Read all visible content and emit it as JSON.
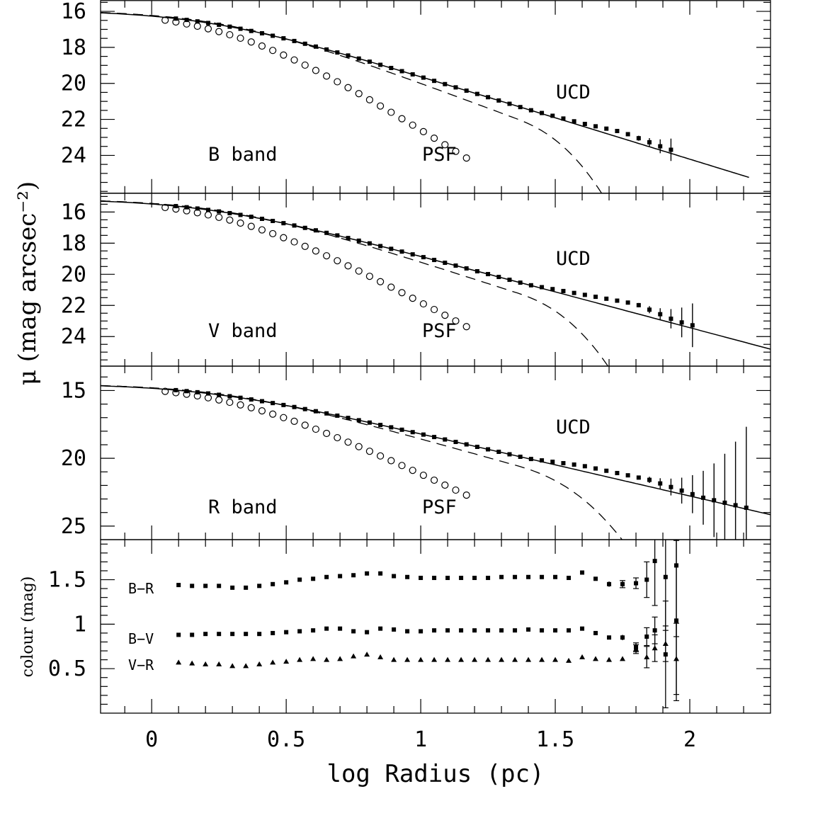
{
  "figure": {
    "ylabel_main": "μ (mag arcsec⁻²)",
    "ylabel_colour": "colour (mag)",
    "xlabel": "log Radius (pc)",
    "x_ticks": [
      "0",
      "0.5",
      "1",
      "1.5",
      "2"
    ],
    "xlim": [
      -0.19,
      2.3
    ]
  },
  "chart_data": [
    {
      "type": "scatter",
      "panel": "B",
      "band_label": "B band",
      "psf_label": "PSF",
      "ucd_label": "UCD",
      "ylim": [
        26.1,
        15.4
      ],
      "y_ticks": [
        "16",
        "18",
        "20",
        "22",
        "24"
      ],
      "y_tick_values": [
        16,
        18,
        20,
        22,
        24
      ],
      "ucd": {
        "r0": 0.2,
        "mu0": 15.93,
        "tail": 2.3
      },
      "sersic": {
        "r0": 0.28,
        "mu0": 15.93,
        "tail": 2.8
      },
      "psf": {
        "r0": 0.3,
        "mu0": 15.93,
        "tail": 4.7
      },
      "psf_x_max": 1.17,
      "ucd_x_max": 1.95,
      "residual": [
        [
          1.4,
          0
        ],
        [
          1.6,
          0.15
        ],
        [
          1.75,
          0.35
        ],
        [
          1.9,
          0.2
        ]
      ],
      "model_end": 2.22,
      "dashed_end": 1.84
    },
    {
      "type": "scatter",
      "panel": "V",
      "band_label": "V band",
      "psf_label": "PSF",
      "ucd_label": "UCD",
      "ylim": [
        25.9,
        14.8
      ],
      "y_ticks": [
        "16",
        "18",
        "20",
        "22",
        "24"
      ],
      "y_tick_values": [
        16,
        18,
        20,
        22,
        24
      ],
      "ucd": {
        "r0": 0.2,
        "mu0": 15.15,
        "tail": 2.3
      },
      "sersic": {
        "r0": 0.28,
        "mu0": 15.15,
        "tail": 2.8
      },
      "psf": {
        "r0": 0.3,
        "mu0": 15.15,
        "tail": 4.7
      },
      "psf_x_max": 1.17,
      "ucd_x_max": 2.04,
      "residual": [
        [
          1.4,
          0
        ],
        [
          1.6,
          0.3
        ],
        [
          1.8,
          0.6
        ],
        [
          1.95,
          0.2
        ]
      ],
      "model_end": 2.3,
      "dashed_end": 1.84
    },
    {
      "type": "scatter",
      "panel": "R",
      "band_label": "R band",
      "psf_label": "PSF",
      "ucd_label": "UCD",
      "ylim": [
        26.0,
        13.2
      ],
      "y_ticks": [
        "15",
        "20",
        "25"
      ],
      "y_tick_values": [
        15,
        20,
        25
      ],
      "ucd": {
        "r0": 0.2,
        "mu0": 14.5,
        "tail": 2.3
      },
      "sersic": {
        "r0": 0.28,
        "mu0": 14.5,
        "tail": 2.8
      },
      "psf": {
        "r0": 0.3,
        "mu0": 14.5,
        "tail": 4.7
      },
      "psf_x_max": 1.17,
      "ucd_x_max": 2.22,
      "residual": [
        [
          1.4,
          0
        ],
        [
          1.6,
          0.4
        ],
        [
          1.85,
          0.5
        ],
        [
          2.05,
          0.1
        ]
      ],
      "model_end": 2.3,
      "dashed_end": 1.88
    },
    {
      "type": "scatter",
      "panel": "colour",
      "ylim": [
        0.0,
        1.95
      ],
      "y_ticks": [
        "0.5",
        "1",
        "1.5"
      ],
      "y_tick_values": [
        0.5,
        1.0,
        1.5
      ],
      "series": [
        {
          "name": "B-R",
          "label": "B−R",
          "marker": "square",
          "x": [
            0.1,
            0.15,
            0.2,
            0.25,
            0.3,
            0.35,
            0.4,
            0.45,
            0.5,
            0.55,
            0.6,
            0.65,
            0.7,
            0.75,
            0.8,
            0.85,
            0.9,
            0.95,
            1.0,
            1.05,
            1.1,
            1.15,
            1.2,
            1.25,
            1.3,
            1.35,
            1.4,
            1.45,
            1.5,
            1.55,
            1.6,
            1.65,
            1.7,
            1.75,
            1.8,
            1.84,
            1.87,
            1.91,
            1.95
          ],
          "y": [
            1.44,
            1.43,
            1.43,
            1.43,
            1.41,
            1.41,
            1.43,
            1.45,
            1.47,
            1.5,
            1.51,
            1.53,
            1.54,
            1.55,
            1.57,
            1.57,
            1.54,
            1.53,
            1.52,
            1.52,
            1.52,
            1.52,
            1.52,
            1.52,
            1.53,
            1.53,
            1.53,
            1.53,
            1.53,
            1.52,
            1.58,
            1.51,
            1.45,
            1.45,
            1.46,
            1.5,
            1.71,
            1.53,
            1.66
          ],
          "err": [
            0.015,
            0.015,
            0.015,
            0.015,
            0.015,
            0.015,
            0.015,
            0.015,
            0.015,
            0.015,
            0.015,
            0.015,
            0.015,
            0.015,
            0.015,
            0.015,
            0.015,
            0.015,
            0.015,
            0.015,
            0.015,
            0.015,
            0.015,
            0.015,
            0.015,
            0.015,
            0.015,
            0.015,
            0.015,
            0.015,
            0.02,
            0.02,
            0.03,
            0.04,
            0.06,
            0.2,
            0.5,
            0.6,
            0.8
          ]
        },
        {
          "name": "B-V",
          "label": "B−V",
          "marker": "square",
          "x": [
            0.1,
            0.15,
            0.2,
            0.25,
            0.3,
            0.35,
            0.4,
            0.45,
            0.5,
            0.55,
            0.6,
            0.65,
            0.7,
            0.75,
            0.8,
            0.85,
            0.9,
            0.95,
            1.0,
            1.05,
            1.1,
            1.15,
            1.2,
            1.25,
            1.3,
            1.35,
            1.4,
            1.45,
            1.5,
            1.55,
            1.6,
            1.65,
            1.7,
            1.75,
            1.8,
            1.84,
            1.87,
            1.91,
            1.95
          ],
          "y": [
            0.88,
            0.88,
            0.89,
            0.89,
            0.89,
            0.89,
            0.89,
            0.9,
            0.91,
            0.92,
            0.93,
            0.95,
            0.95,
            0.92,
            0.91,
            0.95,
            0.94,
            0.92,
            0.92,
            0.93,
            0.93,
            0.93,
            0.93,
            0.93,
            0.93,
            0.93,
            0.94,
            0.93,
            0.93,
            0.93,
            0.95,
            0.9,
            0.85,
            0.85,
            0.74,
            0.86,
            0.93,
            0.66,
            1.04
          ],
          "err": [
            0.015,
            0.015,
            0.015,
            0.015,
            0.015,
            0.015,
            0.015,
            0.015,
            0.015,
            0.015,
            0.015,
            0.015,
            0.015,
            0.015,
            0.015,
            0.015,
            0.015,
            0.015,
            0.015,
            0.015,
            0.015,
            0.015,
            0.015,
            0.015,
            0.015,
            0.015,
            0.015,
            0.015,
            0.015,
            0.015,
            0.02,
            0.02,
            0.02,
            0.03,
            0.05,
            0.1,
            0.15,
            0.6,
            0.9
          ]
        },
        {
          "name": "V-R",
          "label": "V−R",
          "marker": "triangle",
          "x": [
            0.1,
            0.15,
            0.2,
            0.25,
            0.3,
            0.35,
            0.4,
            0.45,
            0.5,
            0.55,
            0.6,
            0.65,
            0.7,
            0.75,
            0.8,
            0.85,
            0.9,
            0.95,
            1.0,
            1.05,
            1.1,
            1.15,
            1.2,
            1.25,
            1.3,
            1.35,
            1.4,
            1.45,
            1.5,
            1.55,
            1.6,
            1.65,
            1.7,
            1.75,
            1.8,
            1.84,
            1.87,
            1.91,
            1.95
          ],
          "y": [
            0.57,
            0.56,
            0.55,
            0.55,
            0.53,
            0.53,
            0.55,
            0.57,
            0.58,
            0.6,
            0.61,
            0.6,
            0.61,
            0.64,
            0.66,
            0.63,
            0.6,
            0.6,
            0.6,
            0.6,
            0.6,
            0.6,
            0.6,
            0.6,
            0.6,
            0.6,
            0.6,
            0.6,
            0.6,
            0.59,
            0.63,
            0.61,
            0.6,
            0.61,
            0.72,
            0.63,
            0.73,
            0.78,
            0.61
          ],
          "err": [
            0.012,
            0.012,
            0.012,
            0.012,
            0.012,
            0.012,
            0.012,
            0.012,
            0.012,
            0.012,
            0.012,
            0.012,
            0.012,
            0.012,
            0.012,
            0.012,
            0.012,
            0.012,
            0.012,
            0.012,
            0.012,
            0.012,
            0.012,
            0.012,
            0.012,
            0.012,
            0.012,
            0.012,
            0.012,
            0.012,
            0.015,
            0.015,
            0.015,
            0.02,
            0.05,
            0.12,
            0.15,
            0.2,
            0.4
          ]
        }
      ]
    }
  ]
}
